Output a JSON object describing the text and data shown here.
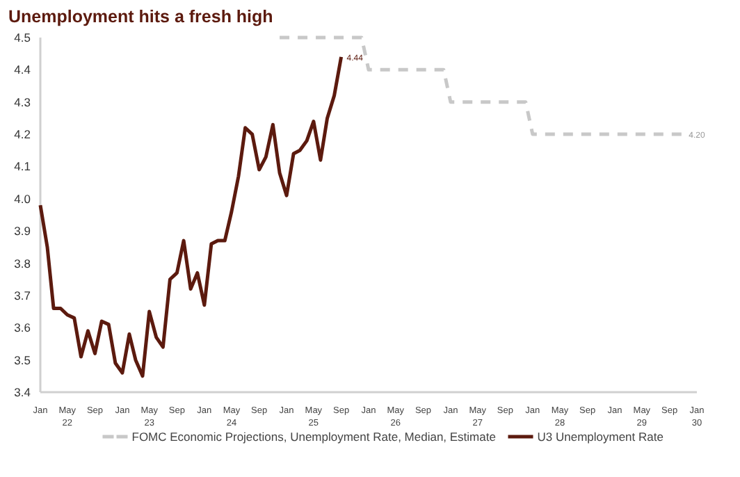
{
  "chart_data": {
    "type": "line",
    "title": "Unemployment hits a fresh high",
    "xlim": [
      "2022-01",
      "2030-01"
    ],
    "xticks": [
      {
        "value": "2022-01",
        "label": "Jan"
      },
      {
        "value": "2022-05",
        "label": "May\n22"
      },
      {
        "value": "2022-09",
        "label": "Sep"
      },
      {
        "value": "2023-01",
        "label": "Jan"
      },
      {
        "value": "2023-05",
        "label": "May\n23"
      },
      {
        "value": "2023-09",
        "label": "Sep"
      },
      {
        "value": "2024-01",
        "label": "Jan"
      },
      {
        "value": "2024-05",
        "label": "May\n24"
      },
      {
        "value": "2024-09",
        "label": "Sep"
      },
      {
        "value": "2025-01",
        "label": "Jan"
      },
      {
        "value": "2025-05",
        "label": "May\n25"
      },
      {
        "value": "2025-09",
        "label": "Sep"
      },
      {
        "value": "2026-01",
        "label": "Jan"
      },
      {
        "value": "2026-05",
        "label": "May\n26"
      },
      {
        "value": "2026-09",
        "label": "Sep"
      },
      {
        "value": "2027-01",
        "label": "Jan"
      },
      {
        "value": "2027-05",
        "label": "May\n27"
      },
      {
        "value": "2027-09",
        "label": "Sep"
      },
      {
        "value": "2028-01",
        "label": "Jan"
      },
      {
        "value": "2028-05",
        "label": "May\n28"
      },
      {
        "value": "2028-09",
        "label": "Sep"
      },
      {
        "value": "2029-01",
        "label": "Jan"
      },
      {
        "value": "2029-05",
        "label": "May\n29"
      },
      {
        "value": "2029-09",
        "label": "Sep"
      },
      {
        "value": "2030-01",
        "label": "Jan\n30"
      }
    ],
    "ylim": [
      3.4,
      4.5
    ],
    "yticks": [
      3.4,
      3.5,
      3.6,
      3.7,
      3.8,
      3.9,
      "4.0",
      4.1,
      4.2,
      4.3,
      4.4,
      4.5
    ],
    "grid": false,
    "legend": "bottom",
    "series": [
      {
        "name": "FOMC Economic Projections, Unemployment Rate, Median, Estimate",
        "color": "#c8c8c8",
        "line_style": "dashed",
        "x": [
          "2024-12",
          "2025-12",
          "2026-01",
          "2026-12",
          "2027-01",
          "2027-12",
          "2028-01",
          "2029-11"
        ],
        "values": [
          4.5,
          4.5,
          4.4,
          4.4,
          4.3,
          4.3,
          4.2,
          4.2
        ],
        "value_labels": [
          null,
          null,
          null,
          null,
          null,
          null,
          null,
          "4.20"
        ]
      },
      {
        "name": "U3 Unemployment Rate",
        "color": "#5c1a0e",
        "line_style": "solid",
        "x": [
          "2022-01",
          "2022-02",
          "2022-03",
          "2022-04",
          "2022-05",
          "2022-06",
          "2022-07",
          "2022-08",
          "2022-09",
          "2022-10",
          "2022-11",
          "2022-12",
          "2023-01",
          "2023-02",
          "2023-03",
          "2023-04",
          "2023-05",
          "2023-06",
          "2023-07",
          "2023-08",
          "2023-09",
          "2023-10",
          "2023-11",
          "2023-12",
          "2024-01",
          "2024-02",
          "2024-03",
          "2024-04",
          "2024-05",
          "2024-06",
          "2024-07",
          "2024-08",
          "2024-09",
          "2024-10",
          "2024-11",
          "2024-12",
          "2025-01",
          "2025-02",
          "2025-03",
          "2025-04",
          "2025-05",
          "2025-06",
          "2025-07",
          "2025-08",
          "2025-09"
        ],
        "values": [
          3.98,
          3.85,
          3.66,
          3.66,
          3.64,
          3.63,
          3.51,
          3.59,
          3.52,
          3.62,
          3.61,
          3.49,
          3.46,
          3.58,
          3.5,
          3.45,
          3.65,
          3.57,
          3.54,
          3.75,
          3.77,
          3.87,
          3.72,
          3.77,
          3.67,
          3.86,
          3.87,
          3.87,
          3.96,
          4.07,
          4.22,
          4.2,
          4.09,
          4.13,
          4.23,
          4.08,
          4.01,
          4.14,
          4.15,
          4.18,
          4.24,
          4.12,
          4.25,
          4.32,
          4.44
        ],
        "value_labels": [
          null,
          null,
          null,
          null,
          null,
          null,
          null,
          null,
          null,
          null,
          null,
          null,
          null,
          null,
          null,
          null,
          null,
          null,
          null,
          null,
          null,
          null,
          null,
          null,
          null,
          null,
          null,
          null,
          null,
          null,
          null,
          null,
          null,
          null,
          null,
          null,
          null,
          null,
          null,
          null,
          null,
          null,
          null,
          null,
          "4.44"
        ]
      }
    ]
  }
}
